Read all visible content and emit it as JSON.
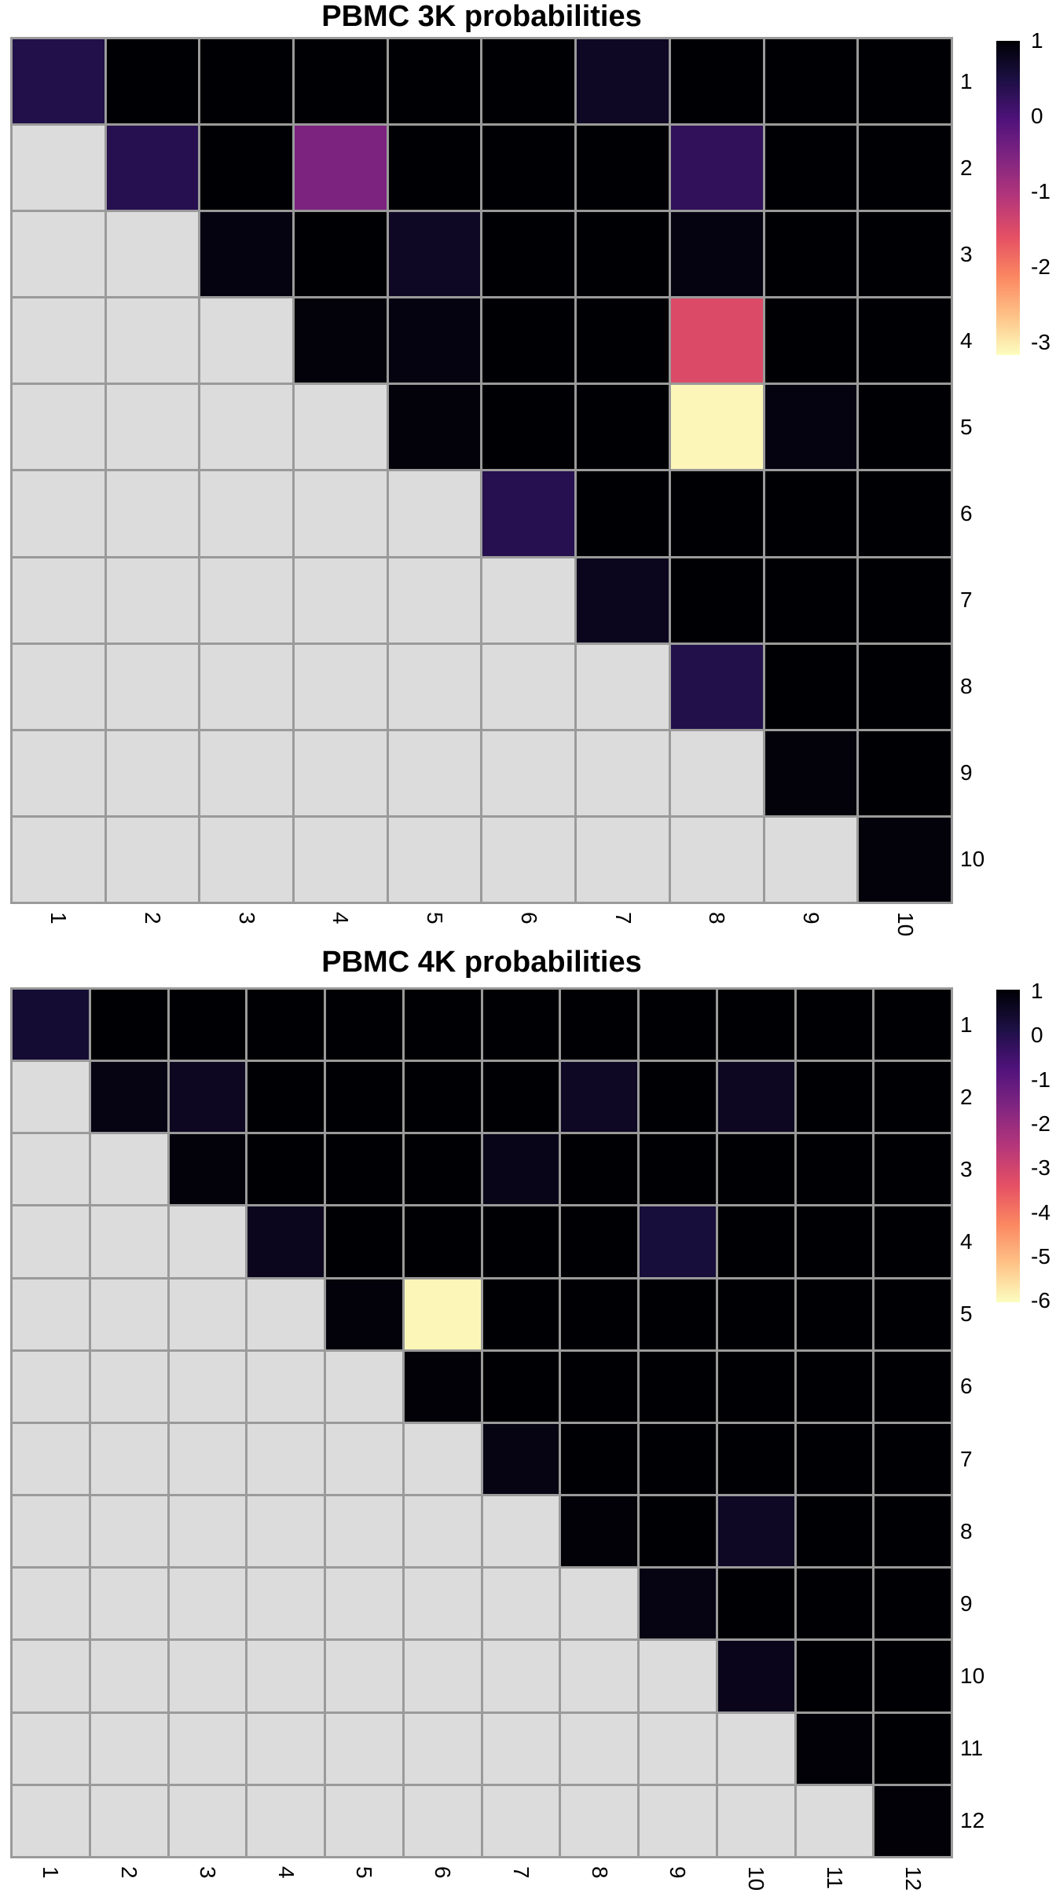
{
  "styles": {
    "background": "#ffffff",
    "grid_line_color": "#9a9a9a",
    "lower_triangle_color": "#dcdcdc",
    "label_color": "#000000"
  },
  "colormap": {
    "name": "magma-reversed",
    "stops": [
      "#000004",
      "#1c1044",
      "#4f127b",
      "#812581",
      "#b5367a",
      "#e55064",
      "#fb8761",
      "#fec287",
      "#fcfdbf"
    ]
  },
  "chart_data": [
    {
      "type": "heatmap",
      "title": "PBMC 3K probabilities",
      "matrix_shape": "upper-triangular",
      "n_rows": 10,
      "n_cols": 10,
      "row_labels": [
        "1",
        "2",
        "3",
        "4",
        "5",
        "6",
        "7",
        "8",
        "9",
        "10"
      ],
      "col_labels": [
        "1",
        "2",
        "3",
        "4",
        "5",
        "6",
        "7",
        "8",
        "9",
        "10"
      ],
      "value_range": {
        "vmax": 1,
        "vmin": -3
      },
      "colorbar_ticks": [
        "1",
        "0",
        "-1",
        "-2",
        "-3"
      ],
      "legend_position": "right",
      "values": [
        [
          0.45,
          1,
          1,
          1,
          1,
          1,
          0.75,
          1,
          1,
          1
        ],
        [
          null,
          0.4,
          1,
          -0.45,
          1,
          1,
          1,
          0.3,
          1,
          1
        ],
        [
          null,
          null,
          0.9,
          1,
          0.75,
          1,
          1,
          0.9,
          1,
          1
        ],
        [
          null,
          null,
          null,
          0.95,
          0.9,
          1,
          1,
          -1.4,
          1,
          1
        ],
        [
          null,
          null,
          null,
          null,
          0.95,
          1,
          1,
          -2.95,
          0.9,
          1
        ],
        [
          null,
          null,
          null,
          null,
          null,
          0.4,
          1,
          1,
          1,
          1
        ],
        [
          null,
          null,
          null,
          null,
          null,
          null,
          0.8,
          1,
          1,
          1
        ],
        [
          null,
          null,
          null,
          null,
          null,
          null,
          null,
          0.45,
          1,
          1
        ],
        [
          null,
          null,
          null,
          null,
          null,
          null,
          null,
          null,
          0.95,
          1
        ],
        [
          null,
          null,
          null,
          null,
          null,
          null,
          null,
          null,
          null,
          0.95
        ]
      ]
    },
    {
      "type": "heatmap",
      "title": "PBMC 4K probabilities",
      "matrix_shape": "upper-triangular",
      "n_rows": 12,
      "n_cols": 12,
      "row_labels": [
        "1",
        "2",
        "3",
        "4",
        "5",
        "6",
        "7",
        "8",
        "9",
        "10",
        "11",
        "12"
      ],
      "col_labels": [
        "1",
        "2",
        "3",
        "4",
        "5",
        "6",
        "7",
        "8",
        "9",
        "10",
        "11",
        "12"
      ],
      "value_range": {
        "vmax": 1,
        "vmin": -6
      },
      "colorbar_ticks": [
        "1",
        "0",
        "-1",
        "-2",
        "-3",
        "-4",
        "-5",
        "-6"
      ],
      "legend_position": "right",
      "values": [
        [
          0.35,
          1,
          1,
          1,
          1,
          1,
          1,
          1,
          1,
          1,
          1,
          1
        ],
        [
          null,
          0.8,
          0.6,
          1,
          1,
          1,
          1,
          0.55,
          1,
          0.6,
          1,
          1
        ],
        [
          null,
          null,
          0.9,
          1,
          1,
          1,
          0.72,
          1,
          1,
          1,
          1,
          1
        ],
        [
          null,
          null,
          null,
          0.65,
          1,
          1,
          1,
          1,
          0.25,
          1,
          1,
          1
        ],
        [
          null,
          null,
          null,
          null,
          0.9,
          -5.9,
          1,
          1,
          1,
          1,
          1,
          1
        ],
        [
          null,
          null,
          null,
          null,
          null,
          0.95,
          1,
          1,
          1,
          1,
          1,
          1
        ],
        [
          null,
          null,
          null,
          null,
          null,
          null,
          0.8,
          1,
          1,
          1,
          1,
          1
        ],
        [
          null,
          null,
          null,
          null,
          null,
          null,
          null,
          0.95,
          1,
          0.55,
          1,
          1
        ],
        [
          null,
          null,
          null,
          null,
          null,
          null,
          null,
          null,
          0.8,
          1,
          1,
          1
        ],
        [
          null,
          null,
          null,
          null,
          null,
          null,
          null,
          null,
          null,
          0.7,
          1,
          1
        ],
        [
          null,
          null,
          null,
          null,
          null,
          null,
          null,
          null,
          null,
          null,
          0.95,
          1
        ],
        [
          null,
          null,
          null,
          null,
          null,
          null,
          null,
          null,
          null,
          null,
          null,
          0.95
        ]
      ]
    }
  ]
}
